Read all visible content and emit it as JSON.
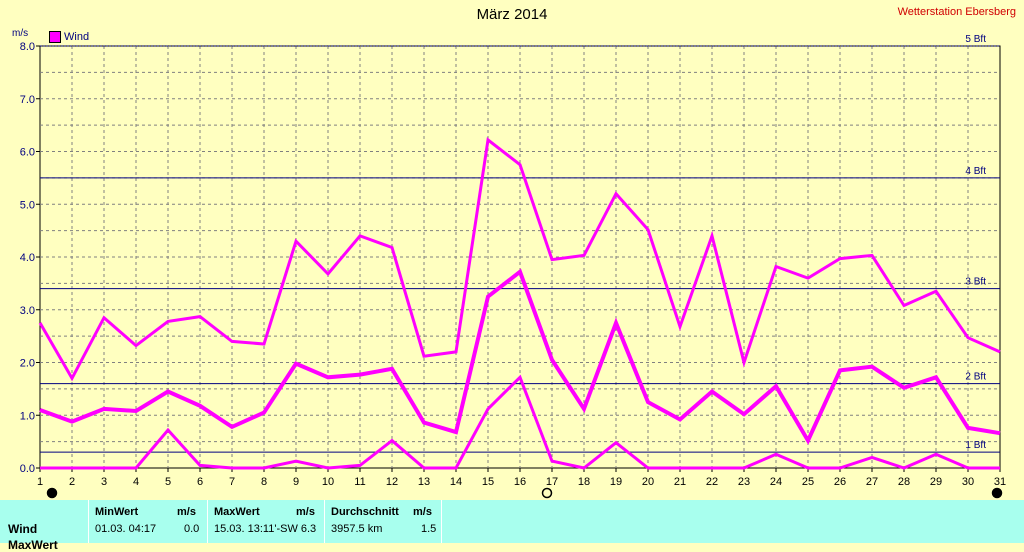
{
  "title": "März 2014",
  "station": "Wetterstation Ebersberg",
  "unit": "m/s",
  "legend": {
    "label": "Wind",
    "color": "#FF00FF"
  },
  "chart_data": {
    "type": "line",
    "ylabel": "m/s",
    "ylim": [
      0,
      8
    ],
    "yticks": [
      "0.0",
      "1.0",
      "2.0",
      "3.0",
      "4.0",
      "5.0",
      "6.0",
      "7.0",
      "8.0"
    ],
    "x": [
      1,
      2,
      3,
      4,
      5,
      6,
      7,
      8,
      9,
      10,
      11,
      12,
      13,
      14,
      15,
      16,
      17,
      18,
      19,
      20,
      21,
      22,
      23,
      24,
      25,
      26,
      27,
      28,
      29,
      30,
      31
    ],
    "grid": true,
    "series": [
      {
        "name": "Wind",
        "values": [
          2.75,
          1.7,
          2.85,
          2.32,
          2.78,
          2.87,
          2.4,
          2.35,
          4.3,
          3.68,
          4.4,
          4.18,
          2.12,
          2.2,
          6.22,
          5.75,
          3.95,
          4.03,
          5.2,
          4.52,
          2.68,
          4.4,
          2.0,
          3.82,
          3.6,
          3.97,
          4.03,
          3.08,
          3.35,
          2.47,
          2.2
        ],
        "width": 3
      },
      {
        "name": "",
        "values": [
          1.1,
          0.88,
          1.12,
          1.08,
          1.45,
          1.18,
          0.78,
          1.05,
          1.98,
          1.72,
          1.77,
          1.88,
          0.86,
          0.68,
          3.25,
          3.72,
          2.05,
          1.12,
          2.75,
          1.25,
          0.92,
          1.45,
          1.02,
          1.55,
          0.52,
          1.85,
          1.92,
          1.52,
          1.72,
          0.76,
          0.66
        ],
        "width": 4
      },
      {
        "name": "",
        "values": [
          0,
          0,
          0,
          0,
          0.72,
          0.05,
          0,
          0,
          0.13,
          0,
          0.05,
          0.52,
          0,
          0,
          1.12,
          1.72,
          0.13,
          0,
          0.48,
          0,
          0,
          0,
          0,
          0.26,
          0,
          0,
          0.2,
          0,
          0.26,
          0,
          0
        ],
        "width": 3
      }
    ],
    "beaufort": [
      {
        "label": "1 Bft",
        "value": 0.3
      },
      {
        "label": "2 Bft",
        "value": 1.6
      },
      {
        "label": "3 Bft",
        "value": 3.4
      },
      {
        "label": "4 Bft",
        "value": 5.5
      },
      {
        "label": "5 Bft",
        "value": 8.0
      }
    ],
    "moon_markers": [
      {
        "day": 1,
        "phase": "new"
      },
      {
        "day": 17,
        "phase": "full"
      },
      {
        "day": 31,
        "phase": "new"
      }
    ]
  },
  "stats": {
    "row_label": "Wind",
    "row2_label": "MaxWert",
    "min_header": "MinWert",
    "min_unit": "m/s",
    "min_date": "01.03.  04:17",
    "min_value": "0.0",
    "max_header": "MaxWert",
    "max_unit": "m/s",
    "max_date": "15.03.  13:11'-SW 6.3",
    "avg_header": "Durchschnitt",
    "avg_unit": "m/s",
    "avg_km": "3957.5 km",
    "avg_value": "1.5"
  }
}
